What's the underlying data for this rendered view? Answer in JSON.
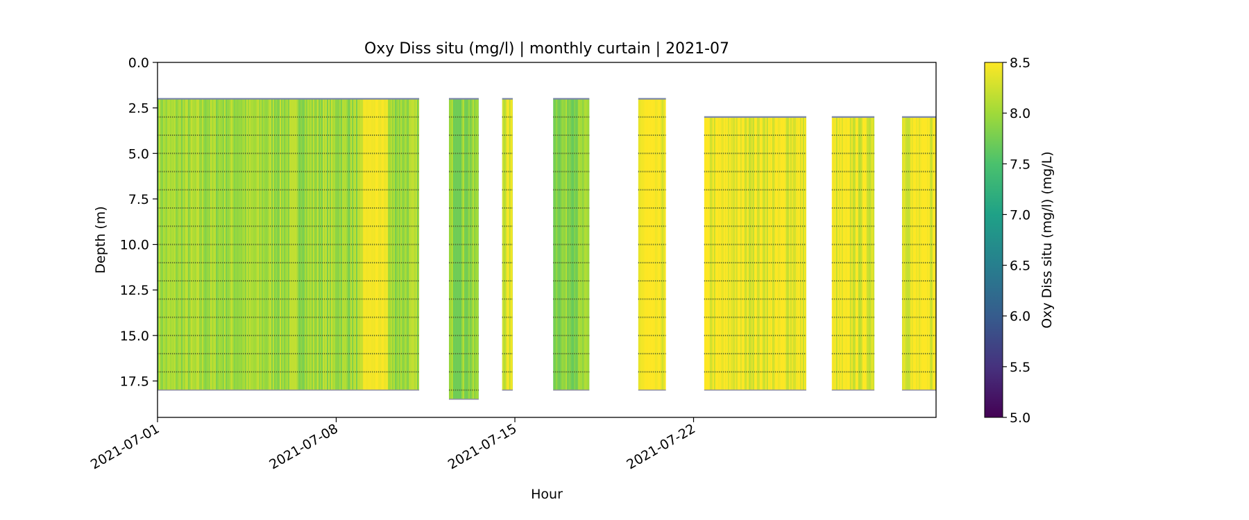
{
  "chart_data": {
    "type": "heatmap",
    "title": "Oxy Diss situ (mg/l) | monthly curtain | 2021-07",
    "xlabel": "Hour",
    "ylabel": "Depth (m)",
    "x_range": [
      "2021-07-01",
      "2021-07-31T12:00"
    ],
    "y_range": [
      0,
      19.5
    ],
    "y_inverted": true,
    "x_ticks": [
      "2021-07-01",
      "2021-07-08",
      "2021-07-15",
      "2021-07-22"
    ],
    "y_ticks": [
      "0.0",
      "2.5",
      "5.0",
      "7.5",
      "10.0",
      "12.5",
      "15.0",
      "17.5"
    ],
    "sample_depths_m": [
      2,
      3,
      4,
      5,
      6,
      7,
      8,
      9,
      10,
      11,
      12,
      13,
      14,
      15,
      16,
      17,
      18
    ],
    "segments": [
      {
        "start": "2021-07-01T00:00",
        "end": "2021-07-11T06:00",
        "top_m": 2.0,
        "bottom_m": 18.0,
        "oxygen_mg_l": 8.0,
        "bright_start": "2021-07-09T00:00",
        "bright_end": "2021-07-10T00:00"
      },
      {
        "start": "2021-07-12T10:00",
        "end": "2021-07-13T14:00",
        "top_m": 2.0,
        "bottom_m": 18.5,
        "oxygen_mg_l": 7.9
      },
      {
        "start": "2021-07-14T12:00",
        "end": "2021-07-14T22:00",
        "top_m": 2.0,
        "bottom_m": 18.0,
        "oxygen_mg_l": 8.3
      },
      {
        "start": "2021-07-16T12:00",
        "end": "2021-07-17T22:00",
        "top_m": 2.0,
        "bottom_m": 18.0,
        "oxygen_mg_l": 7.9
      },
      {
        "start": "2021-07-19T20:00",
        "end": "2021-07-20T22:00",
        "top_m": 2.0,
        "bottom_m": 18.0,
        "oxygen_mg_l": 8.45
      },
      {
        "start": "2021-07-22T10:00",
        "end": "2021-07-26T10:00",
        "top_m": 3.0,
        "bottom_m": 18.0,
        "oxygen_mg_l": 8.4
      },
      {
        "start": "2021-07-27T10:00",
        "end": "2021-07-29T02:00",
        "top_m": 3.0,
        "bottom_m": 18.0,
        "oxygen_mg_l": 8.35
      },
      {
        "start": "2021-07-30T04:00",
        "end": "2021-07-31T12:00",
        "top_m": 3.0,
        "bottom_m": 18.0,
        "oxygen_mg_l": 8.4
      }
    ],
    "colorbar": {
      "label": "Oxy Diss situ (mg/l) (mg/L)",
      "colormap": "viridis",
      "vmin": 5.0,
      "vmax": 8.5,
      "ticks": [
        "5.0",
        "5.5",
        "6.0",
        "6.5",
        "7.0",
        "7.5",
        "8.0",
        "8.5"
      ]
    },
    "grid": false,
    "legend": "none"
  }
}
